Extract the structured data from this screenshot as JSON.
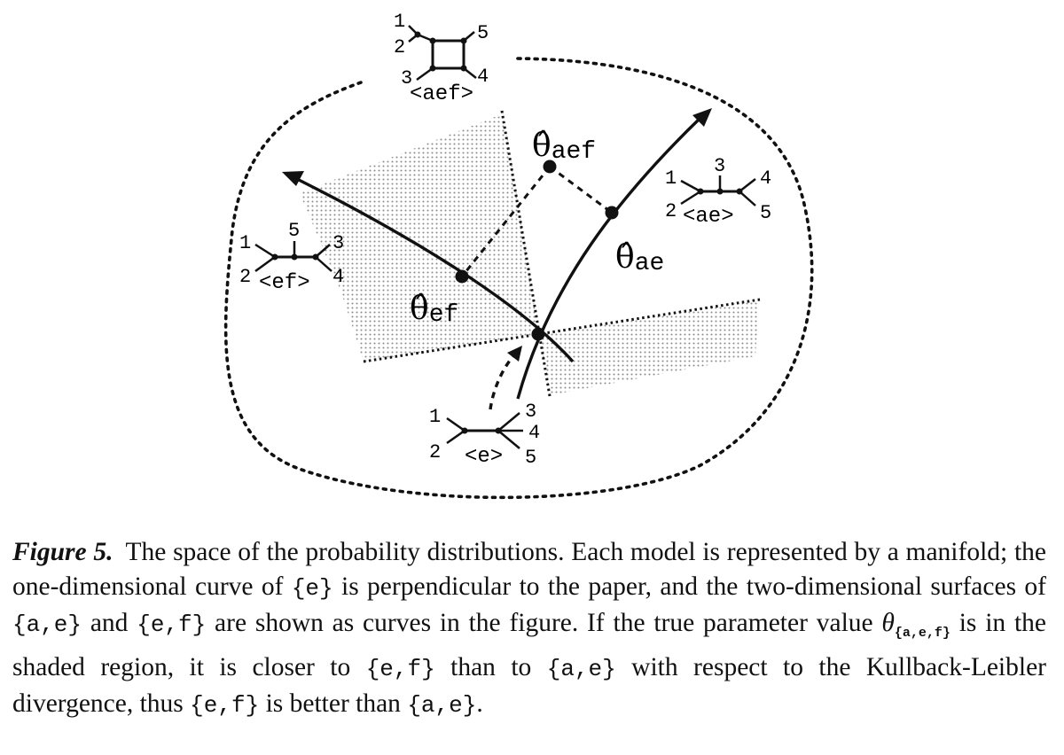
{
  "figure": {
    "models": {
      "aef": {
        "label": "<aef>",
        "leaves": [
          "1",
          "2",
          "3",
          "4",
          "5"
        ]
      },
      "ae": {
        "label": "<ae>",
        "leaves": [
          "1",
          "2",
          "3",
          "4",
          "5"
        ]
      },
      "ef": {
        "label": "<ef>",
        "leaves": [
          "1",
          "2",
          "5",
          "3",
          "4"
        ]
      },
      "e": {
        "label": "<e>",
        "leaves": [
          "1",
          "2",
          "3",
          "4",
          "5"
        ]
      }
    },
    "estimates": {
      "aef": {
        "symbol": "θ̂",
        "subscript": "aef"
      },
      "ae": {
        "symbol": "θ̂",
        "subscript": "ae"
      },
      "ef": {
        "symbol": "θ̂",
        "subscript": "ef"
      }
    },
    "colors": {
      "ink": "#111111",
      "shade": "#9a9a9a"
    }
  },
  "caption": {
    "label": "Figure 5.",
    "t1": "The space of the probability distributions. Each model is represented by a manifold; the one-dimensional curve of ",
    "m1": "{e}",
    "t2": " is perpendicular to the paper, and the two-dimensional surfaces of ",
    "m2": "{a,e}",
    "t3": " and ",
    "m3": "{e,f}",
    "t4": " are shown as curves in the figure. If the true parameter value ",
    "theta": "θ",
    "theta_sub": "{a,e,f}",
    "t5": " is in the shaded region, it is closer to ",
    "m4": "{e,f}",
    "t6": " than to ",
    "m5": "{a,e}",
    "t7": " with respect to the Kullback-Leibler divergence, thus ",
    "m6": "{e,f}",
    "t8": " is better than ",
    "m7": "{a,e}",
    "t9": "."
  }
}
